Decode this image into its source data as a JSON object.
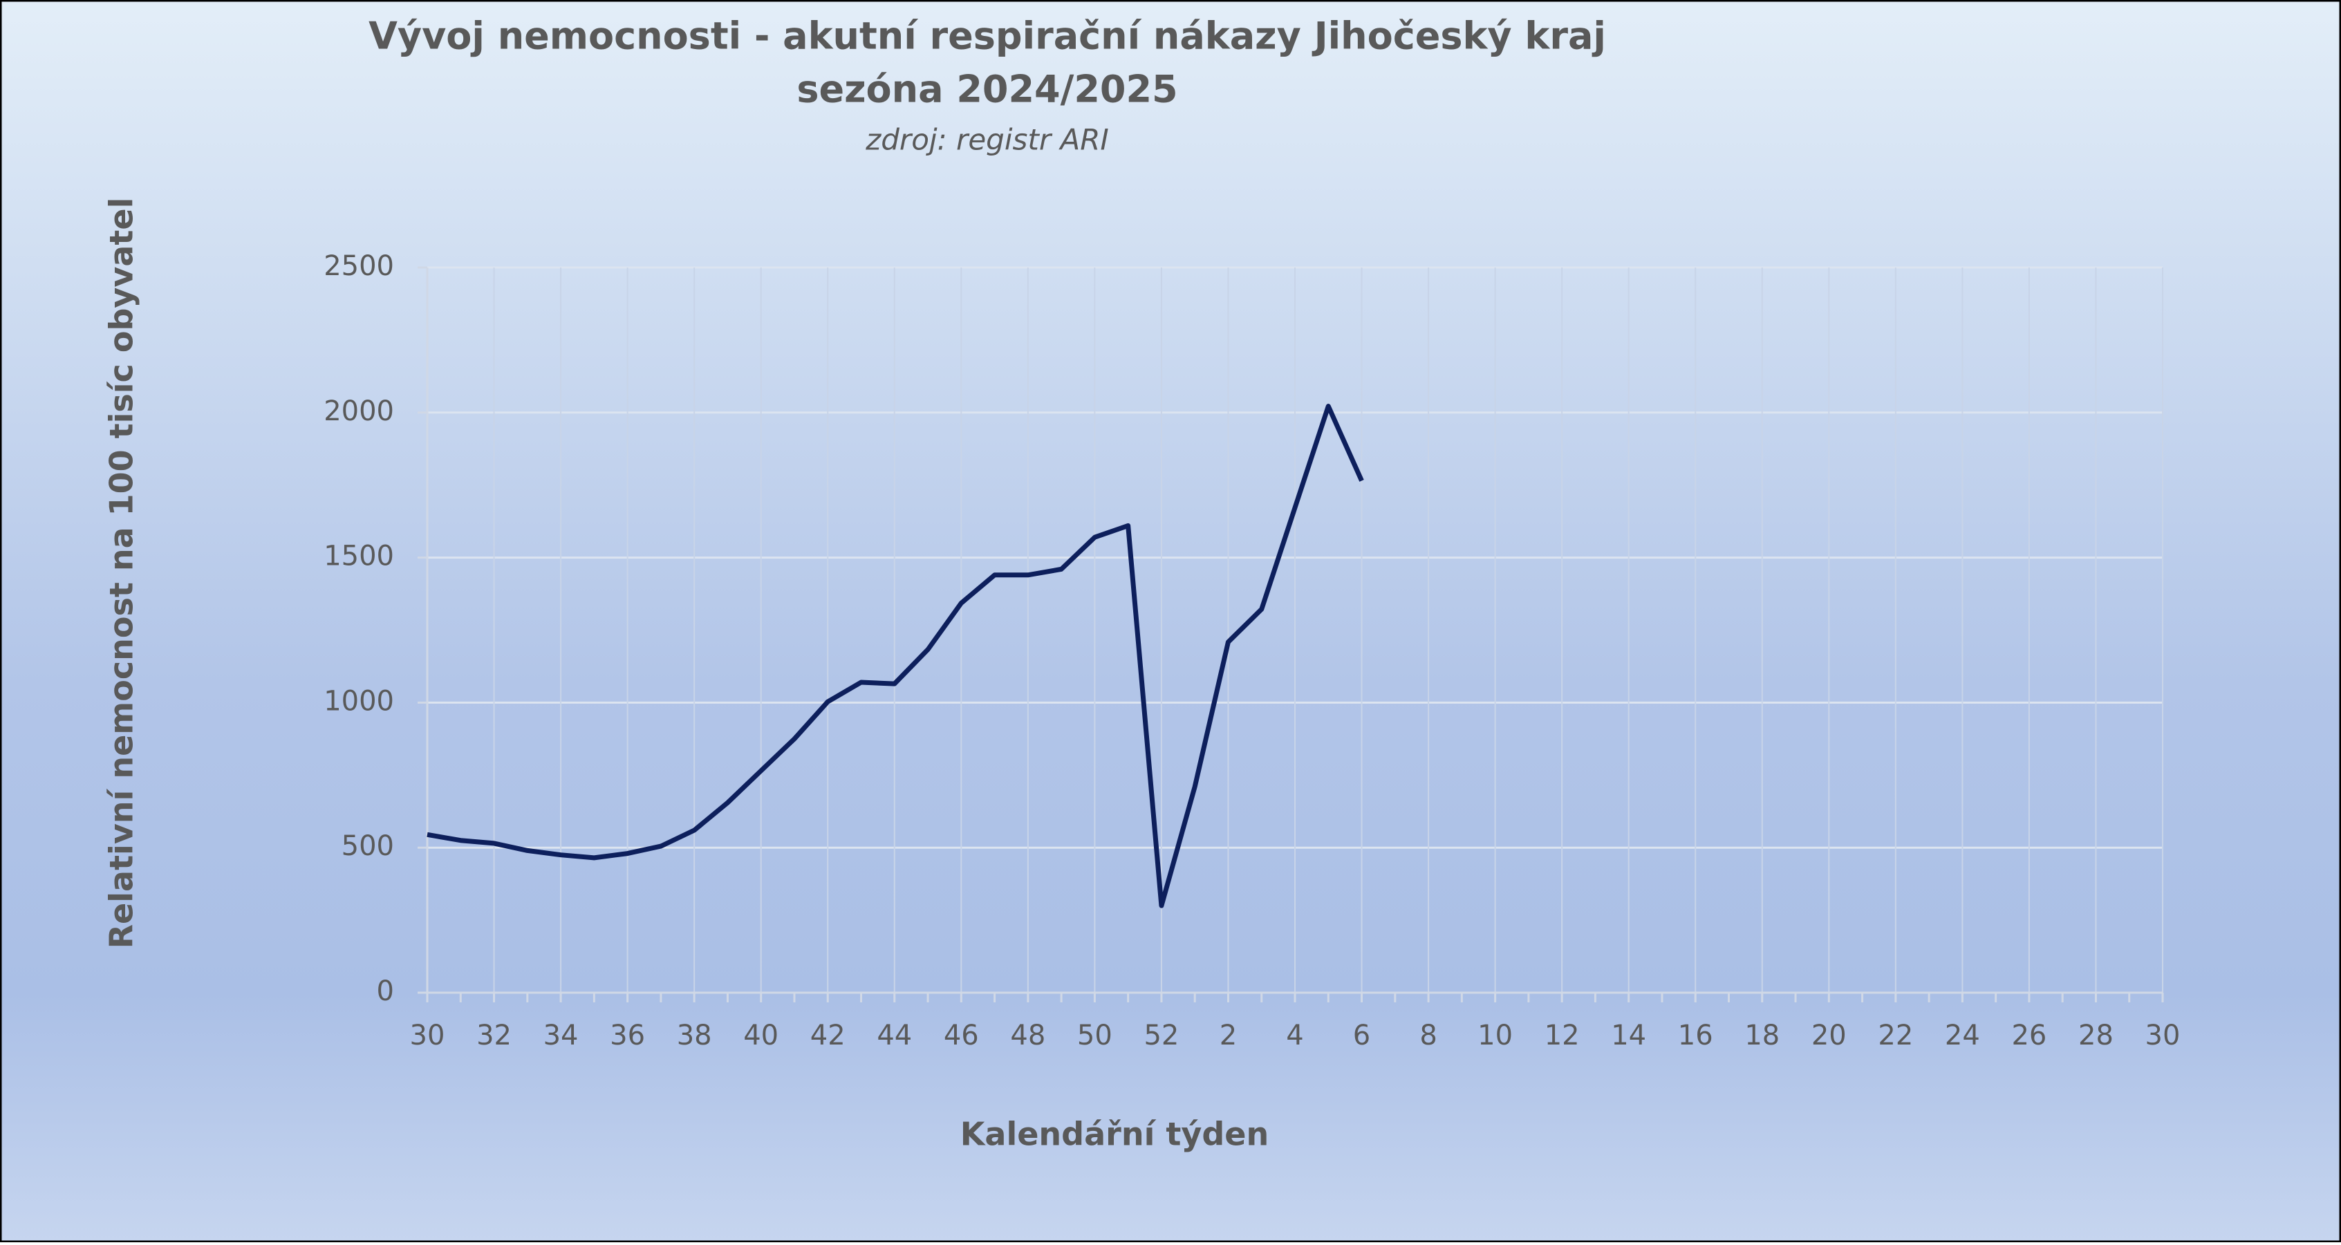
{
  "chart_data": {
    "type": "line",
    "title": [
      "Vývoj nemocnosti - akutní respirační nákazy Jihočeský kraj",
      "sezóna 2024/2025"
    ],
    "subtitle": "zdroj: registr ARI",
    "x_label": "Kalendářní týden",
    "y_label": "Relativní nemocnost na 100 tisíc obyvatel",
    "categories": [
      "30",
      null,
      "32",
      null,
      "34",
      null,
      "36",
      null,
      "38",
      null,
      "40",
      null,
      "42",
      null,
      "44",
      null,
      "46",
      null,
      "48",
      null,
      "50",
      null,
      "52",
      null,
      "2",
      null,
      "4",
      null,
      "6",
      null,
      "8",
      null,
      "10",
      null,
      "12",
      null,
      "14",
      null,
      "16",
      null,
      "18",
      null,
      "20",
      null,
      "22",
      null,
      "24",
      null,
      "26",
      null,
      "28",
      null,
      "30"
    ],
    "series": [
      {
        "name": "Jihočeský kraj",
        "color": "#0d1f5c",
        "values": [
          545,
          525,
          515,
          490,
          475,
          465,
          480,
          505,
          560,
          655,
          765,
          875,
          1003,
          1070,
          1065,
          1183,
          1343,
          1440,
          1440,
          1460,
          1570,
          1610,
          300,
          710,
          1209,
          1322,
          1672,
          2022,
          1765,
          null,
          null,
          null,
          null,
          null,
          null,
          null,
          null,
          null,
          null,
          null,
          null,
          null,
          null,
          null,
          null,
          null,
          null,
          null,
          null,
          null,
          null,
          null,
          null
        ]
      }
    ],
    "ylim": [
      0,
      2500
    ],
    "yticks": [
      0,
      500,
      1000,
      1500,
      2000,
      2500
    ],
    "grid": true
  }
}
